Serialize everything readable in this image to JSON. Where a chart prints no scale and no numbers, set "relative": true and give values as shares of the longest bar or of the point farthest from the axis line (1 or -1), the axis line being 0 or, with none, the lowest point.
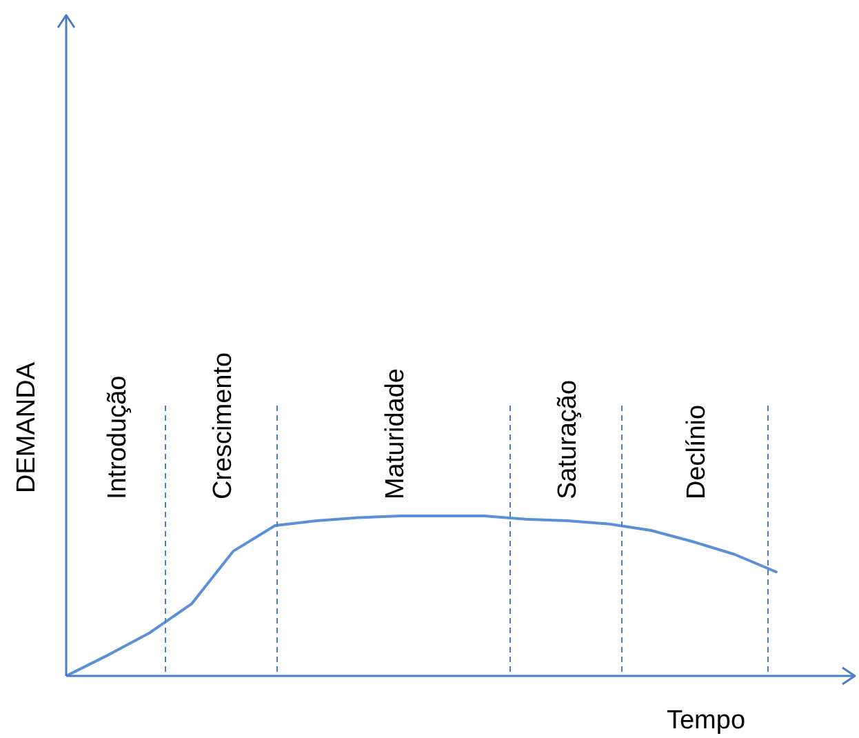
{
  "chart_data": {
    "type": "line",
    "relative": true,
    "xlabel": "Tempo",
    "ylabel": "DEMANDA",
    "legend": false,
    "marker": "none",
    "line_style": "solid",
    "categories": [
      null,
      null,
      null,
      null,
      null,
      null,
      null,
      null,
      null,
      null,
      null,
      null,
      null,
      null,
      null,
      null,
      null,
      null
    ],
    "series": [
      {
        "color": "#5b8fd8",
        "values": [
          0,
          0.13,
          0.27,
          0.45,
          0.78,
          0.94,
          0.97,
          0.99,
          1,
          1,
          1,
          0.98,
          0.97,
          0.95,
          0.91,
          0.84,
          0.76,
          0.65
        ]
      }
    ],
    "annotations": [
      "Introdução",
      "Crescimento",
      "Maturidade",
      "Saturação",
      "Declínio"
    ]
  }
}
